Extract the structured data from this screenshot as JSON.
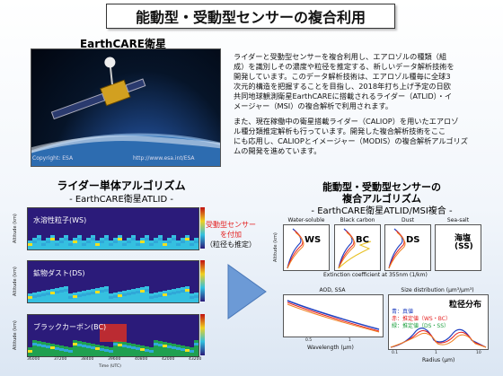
{
  "title": "能動型・受動型センサーの複合利用",
  "satellite": {
    "label": "EarthCARE衛星",
    "credit_left": "Copyright: ESA",
    "credit_right": "http://www.esa.int/ESA"
  },
  "para1": [
    "ライダーと受動型センサーを複合利用し、エアロゾルの種類（組",
    "成）を識別しその濃度や粒径を推定する、新しいデータ解析技術を",
    "開発しています。このデータ解析技術は、エアロゾル種毎に全球3",
    "次元的構造を把握することを目指し、2018年打ち上げ予定の日欧",
    "共同地球観測衛星EarthCAREに搭載されるライダー（ATLID）・イ",
    "メージャー（MSI）の複合解析で利用されます。"
  ],
  "para2": [
    "また、現在稼働中の衛星搭載ライダー（CALIOP）を用いたエアロゾ",
    "ル種分類推定解析も行っています。開発した複合解析技術をここ",
    "にも応用し、CALIOPとイメージャー（MODIS）の複合解析アルゴリズ",
    "ムの開発を進めています。"
  ],
  "left_heading": "ライダー単体アルゴリズム",
  "left_sub": "- EarthCARE衛星ATLID -",
  "right_heading1": "能動型・受動型センサーの",
  "right_heading2": "複合アルゴリズム",
  "right_sub": "- EarthCARE衛星ATLID/MSI複合 -",
  "panels": [
    {
      "label": "水溶性粒子(WS)"
    },
    {
      "label": "鉱物ダスト(DS)"
    },
    {
      "label": "ブラックカーボン(BC)"
    }
  ],
  "panel_axis": {
    "ylabel": "Altitude (km)",
    "xlabel": "Time (UTC)",
    "cb_label": "Extinction (km-1)",
    "xticks": [
      "36000",
      "37200",
      "38400",
      "39600",
      "40800",
      "42000",
      "43200"
    ],
    "yticks": [
      "20",
      "15",
      "10",
      "5",
      "0"
    ],
    "cbticks": [
      "0.20",
      "0.16",
      "0.12",
      "0.08",
      "0.04",
      "0.00"
    ]
  },
  "middle": {
    "line1": "受動型センサー",
    "line2": "を付加",
    "line3": "（粒径も推定）"
  },
  "mini_plots": [
    {
      "title": "Water-soluble",
      "badge": "WS"
    },
    {
      "title": "Black carbon",
      "badge": "BC"
    },
    {
      "title": "Dust",
      "badge": "DS"
    },
    {
      "title": "Sea-salt",
      "badge1": "海塩",
      "badge2": "(SS)"
    }
  ],
  "mini_axis": {
    "ylabel": "Altitude (km)",
    "xlabel": "Extinction coefficient at 355nm (1/km)"
  },
  "aod": {
    "title": "AOD, SSA",
    "xlabel": "Wavelength (μm)",
    "ticks": [
      "0.5",
      "1"
    ]
  },
  "size": {
    "title": "Size distribution (μm³/μm³)",
    "xlabel": "Radius (μm)",
    "heading": "粒径分布",
    "legend": [
      "青：真値",
      "赤：推定値（WS・BC）",
      "緑：推定値（DS・SS）"
    ],
    "ticks": [
      "0.1",
      "1",
      "10"
    ]
  },
  "colors": {
    "red": "#e41e1e",
    "blue": "#2040c0",
    "orange": "#f08020",
    "green": "#20a040"
  }
}
